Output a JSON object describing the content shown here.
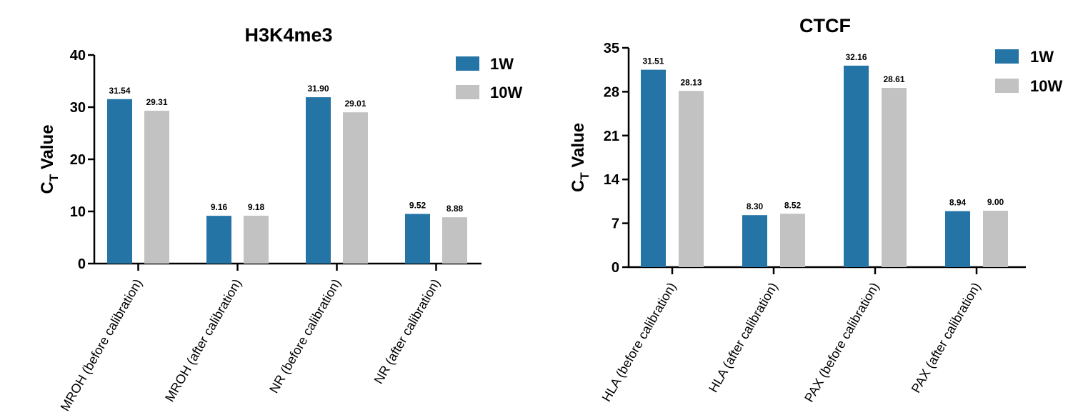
{
  "chart_data": [
    {
      "type": "bar",
      "title": "H3K4me3",
      "ylabel_main": "C",
      "ylabel_sub": "T",
      "ylabel_rest": " Value",
      "categories": [
        "MROH (before calibration)",
        "MROH (after calibration)",
        "NR (before calibration)",
        "NR (after calibration)"
      ],
      "series": [
        {
          "name": "1W",
          "color": "#2474a6",
          "values": [
            31.54,
            9.16,
            31.9,
            9.52
          ],
          "labels": [
            "31.54",
            "9.16",
            "31.90",
            "9.52"
          ]
        },
        {
          "name": "10W",
          "color": "#c2c2c2",
          "values": [
            29.31,
            9.18,
            29.01,
            8.88
          ],
          "labels": [
            "29.31",
            "9.18",
            "29.01",
            "8.88"
          ]
        }
      ],
      "ylim": [
        0,
        40
      ],
      "yticks": [
        "0",
        "10",
        "20",
        "30",
        "40"
      ],
      "legend": "top-right",
      "grid": false
    },
    {
      "type": "bar",
      "title": "CTCF",
      "ylabel_main": "C",
      "ylabel_sub": "T",
      "ylabel_rest": " Value",
      "categories": [
        "HLA (before calibration)",
        "HLA (after calibration)",
        "PAX (before calibration)",
        "PAX (after calibration)"
      ],
      "series": [
        {
          "name": "1W",
          "color": "#2474a6",
          "values": [
            31.51,
            8.3,
            32.16,
            8.94
          ],
          "labels": [
            "31.51",
            "8.30",
            "32.16",
            "8.94"
          ]
        },
        {
          "name": "10W",
          "color": "#c2c2c2",
          "values": [
            28.13,
            8.52,
            28.61,
            9.0
          ],
          "labels": [
            "28.13",
            "8.52",
            "28.61",
            "9.00"
          ]
        }
      ],
      "ylim": [
        0,
        35
      ],
      "yticks": [
        "0",
        "7",
        "14",
        "21",
        "28",
        "35"
      ],
      "legend": "top-right",
      "grid": false
    }
  ]
}
